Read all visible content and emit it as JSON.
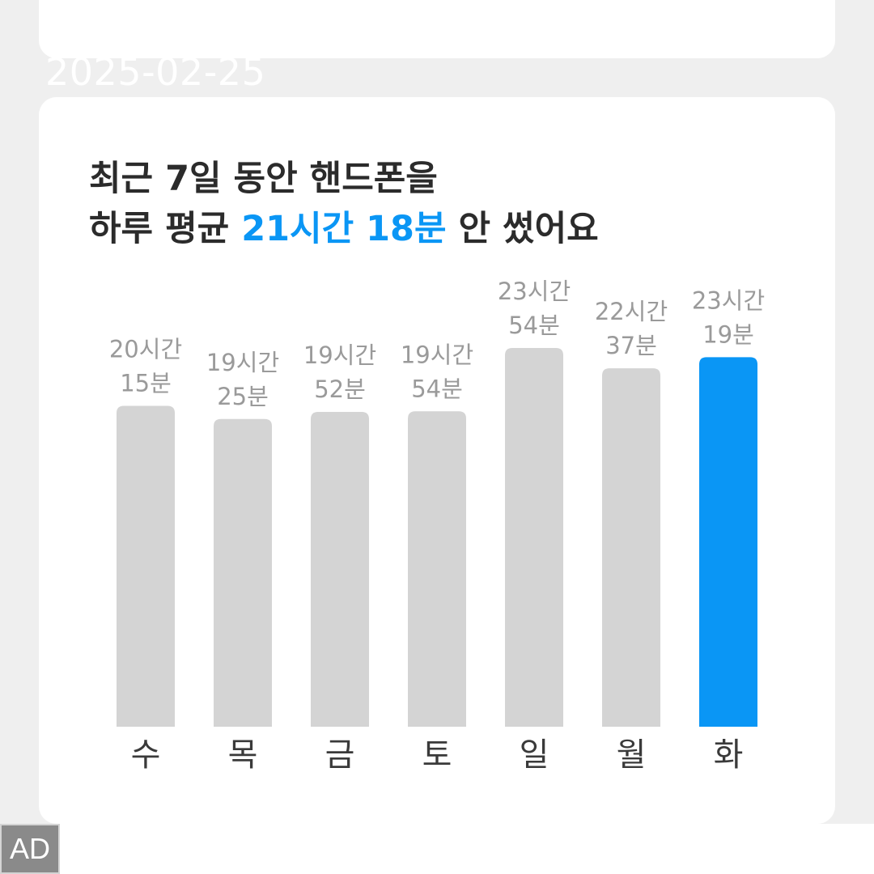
{
  "date": "2025-02-25",
  "headline": {
    "line1": "최근 7일 동안 핸드폰을",
    "line2_prefix": "하루 평균 ",
    "line2_accent": "21시간 18분",
    "line2_suffix": " 안 썼어요"
  },
  "ad_label": "AD",
  "colors": {
    "bar_default": "#d4d4d4",
    "bar_highlight": "#0a96f5",
    "value_text": "#9a9a9a",
    "day_text": "#3a3a3a"
  },
  "chart_data": {
    "type": "bar",
    "categories": [
      "수",
      "목",
      "금",
      "토",
      "일",
      "월",
      "화"
    ],
    "value_labels": [
      [
        "20시간",
        "15분"
      ],
      [
        "19시간",
        "25분"
      ],
      [
        "19시간",
        "52분"
      ],
      [
        "19시간",
        "54분"
      ],
      [
        "23시간",
        "54분"
      ],
      [
        "22시간",
        "37분"
      ],
      [
        "23시간",
        "19분"
      ]
    ],
    "values_minutes": [
      1215,
      1165,
      1192,
      1194,
      1434,
      1357,
      1399
    ],
    "highlight_index": 6,
    "ylim": [
      0,
      1440
    ]
  }
}
